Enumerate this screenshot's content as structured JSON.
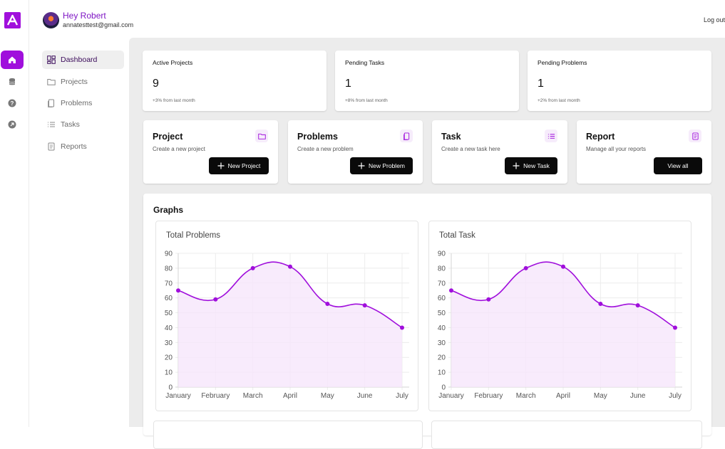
{
  "user": {
    "greeting": "Hey Robert",
    "email": "annatesttest@gmail.com"
  },
  "header": {
    "logout": "Log out"
  },
  "sidebar": {
    "items": [
      {
        "label": "Dashboard",
        "icon": "dashboard-icon",
        "active": true
      },
      {
        "label": "Projects",
        "icon": "folder-icon",
        "active": false
      },
      {
        "label": "Problems",
        "icon": "document-icon",
        "active": false
      },
      {
        "label": "Tasks",
        "icon": "list-icon",
        "active": false
      },
      {
        "label": "Reports",
        "icon": "report-icon",
        "active": false
      }
    ]
  },
  "rail": {
    "icons": [
      "home-icon",
      "database-icon",
      "help-icon",
      "arrow-icon"
    ]
  },
  "stats": [
    {
      "title": "Active Projects",
      "value": "9",
      "sub": "+3% from last month"
    },
    {
      "title": "Pending Tasks",
      "value": "1",
      "sub": "+8% from last month"
    },
    {
      "title": "Pending Problems",
      "value": "1",
      "sub": "+2% from last month"
    }
  ],
  "actions": [
    {
      "title": "Project",
      "sub": "Create a new project",
      "button": "New Project",
      "icon": "folder-icon"
    },
    {
      "title": "Problems",
      "sub": "Create a new problem",
      "button": "New Problem",
      "icon": "document-icon"
    },
    {
      "title": "Task",
      "sub": "Create a new task here",
      "button": "New Task",
      "icon": "list-icon"
    },
    {
      "title": "Report",
      "sub": "Manage all your reports",
      "button": "View all",
      "icon": "report-icon"
    }
  ],
  "graphs": {
    "title": "Graphs"
  },
  "colors": {
    "accent": "#a00fdc",
    "fill": "#f6e6fb"
  },
  "chart_data": [
    {
      "type": "area",
      "title": "Total Problems",
      "categories": [
        "January",
        "February",
        "March",
        "April",
        "May",
        "June",
        "July"
      ],
      "values": [
        65,
        59,
        80,
        81,
        56,
        55,
        40
      ],
      "ylim": [
        0,
        90
      ],
      "yticks": [
        0,
        10,
        20,
        30,
        40,
        50,
        60,
        70,
        80,
        90
      ],
      "grid": true
    },
    {
      "type": "area",
      "title": "Total Task",
      "categories": [
        "January",
        "February",
        "March",
        "April",
        "May",
        "June",
        "July"
      ],
      "values": [
        65,
        59,
        80,
        81,
        56,
        55,
        40
      ],
      "ylim": [
        0,
        90
      ],
      "yticks": [
        0,
        10,
        20,
        30,
        40,
        50,
        60,
        70,
        80,
        90
      ],
      "grid": true
    }
  ]
}
